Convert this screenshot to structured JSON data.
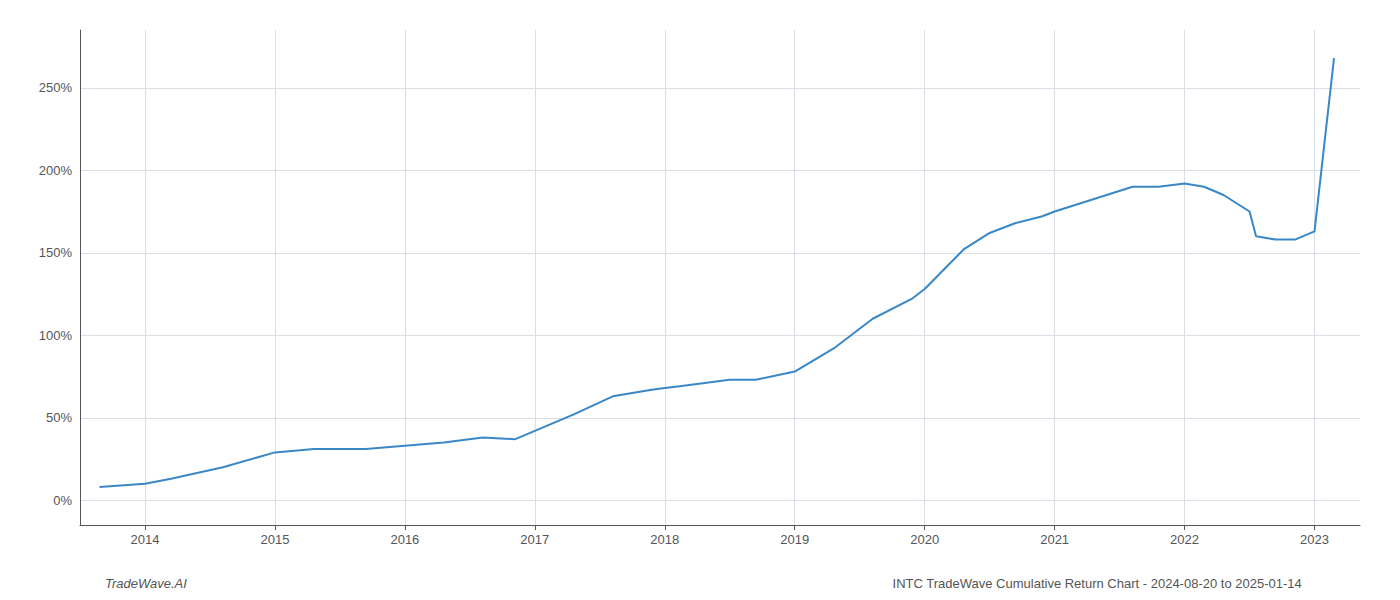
{
  "chart_data": {
    "type": "line",
    "x": [
      2013.65,
      2014.0,
      2014.2,
      2014.6,
      2015.0,
      2015.3,
      2015.7,
      2016.0,
      2016.3,
      2016.6,
      2016.85,
      2017.0,
      2017.3,
      2017.6,
      2017.9,
      2018.0,
      2018.1,
      2018.5,
      2018.7,
      2019.0,
      2019.3,
      2019.6,
      2019.9,
      2020.0,
      2020.15,
      2020.3,
      2020.5,
      2020.7,
      2020.9,
      2021.0,
      2021.2,
      2021.4,
      2021.6,
      2021.8,
      2022.0,
      2022.15,
      2022.3,
      2022.5,
      2022.55,
      2022.7,
      2022.85,
      2023.0,
      2023.15
    ],
    "values": [
      8,
      10,
      13,
      20,
      29,
      31,
      31,
      33,
      35,
      38,
      37,
      42,
      52,
      63,
      67,
      68,
      69,
      73,
      73,
      78,
      92,
      110,
      122,
      128,
      140,
      152,
      162,
      168,
      172,
      175,
      180,
      185,
      190,
      190,
      192,
      190,
      185,
      175,
      160,
      158,
      158,
      163,
      268
    ],
    "color": "#3a87c8",
    "xlim": [
      2013.5,
      2023.35
    ],
    "ylim": [
      -15,
      285
    ],
    "xticks": [
      2014,
      2015,
      2016,
      2017,
      2018,
      2019,
      2020,
      2021,
      2022,
      2023
    ],
    "yticks": [
      {
        "value": 0,
        "label": "0%"
      },
      {
        "value": 50,
        "label": "50%"
      },
      {
        "value": 100,
        "label": "100%"
      },
      {
        "value": 150,
        "label": "150%"
      },
      {
        "value": 200,
        "label": "200%"
      },
      {
        "value": 250,
        "label": "250%"
      }
    ],
    "grid": true,
    "annotations": [
      "TradeWave.AI",
      "INTC TradeWave Cumulative Return Chart - 2024-08-20 to 2025-01-14"
    ]
  }
}
